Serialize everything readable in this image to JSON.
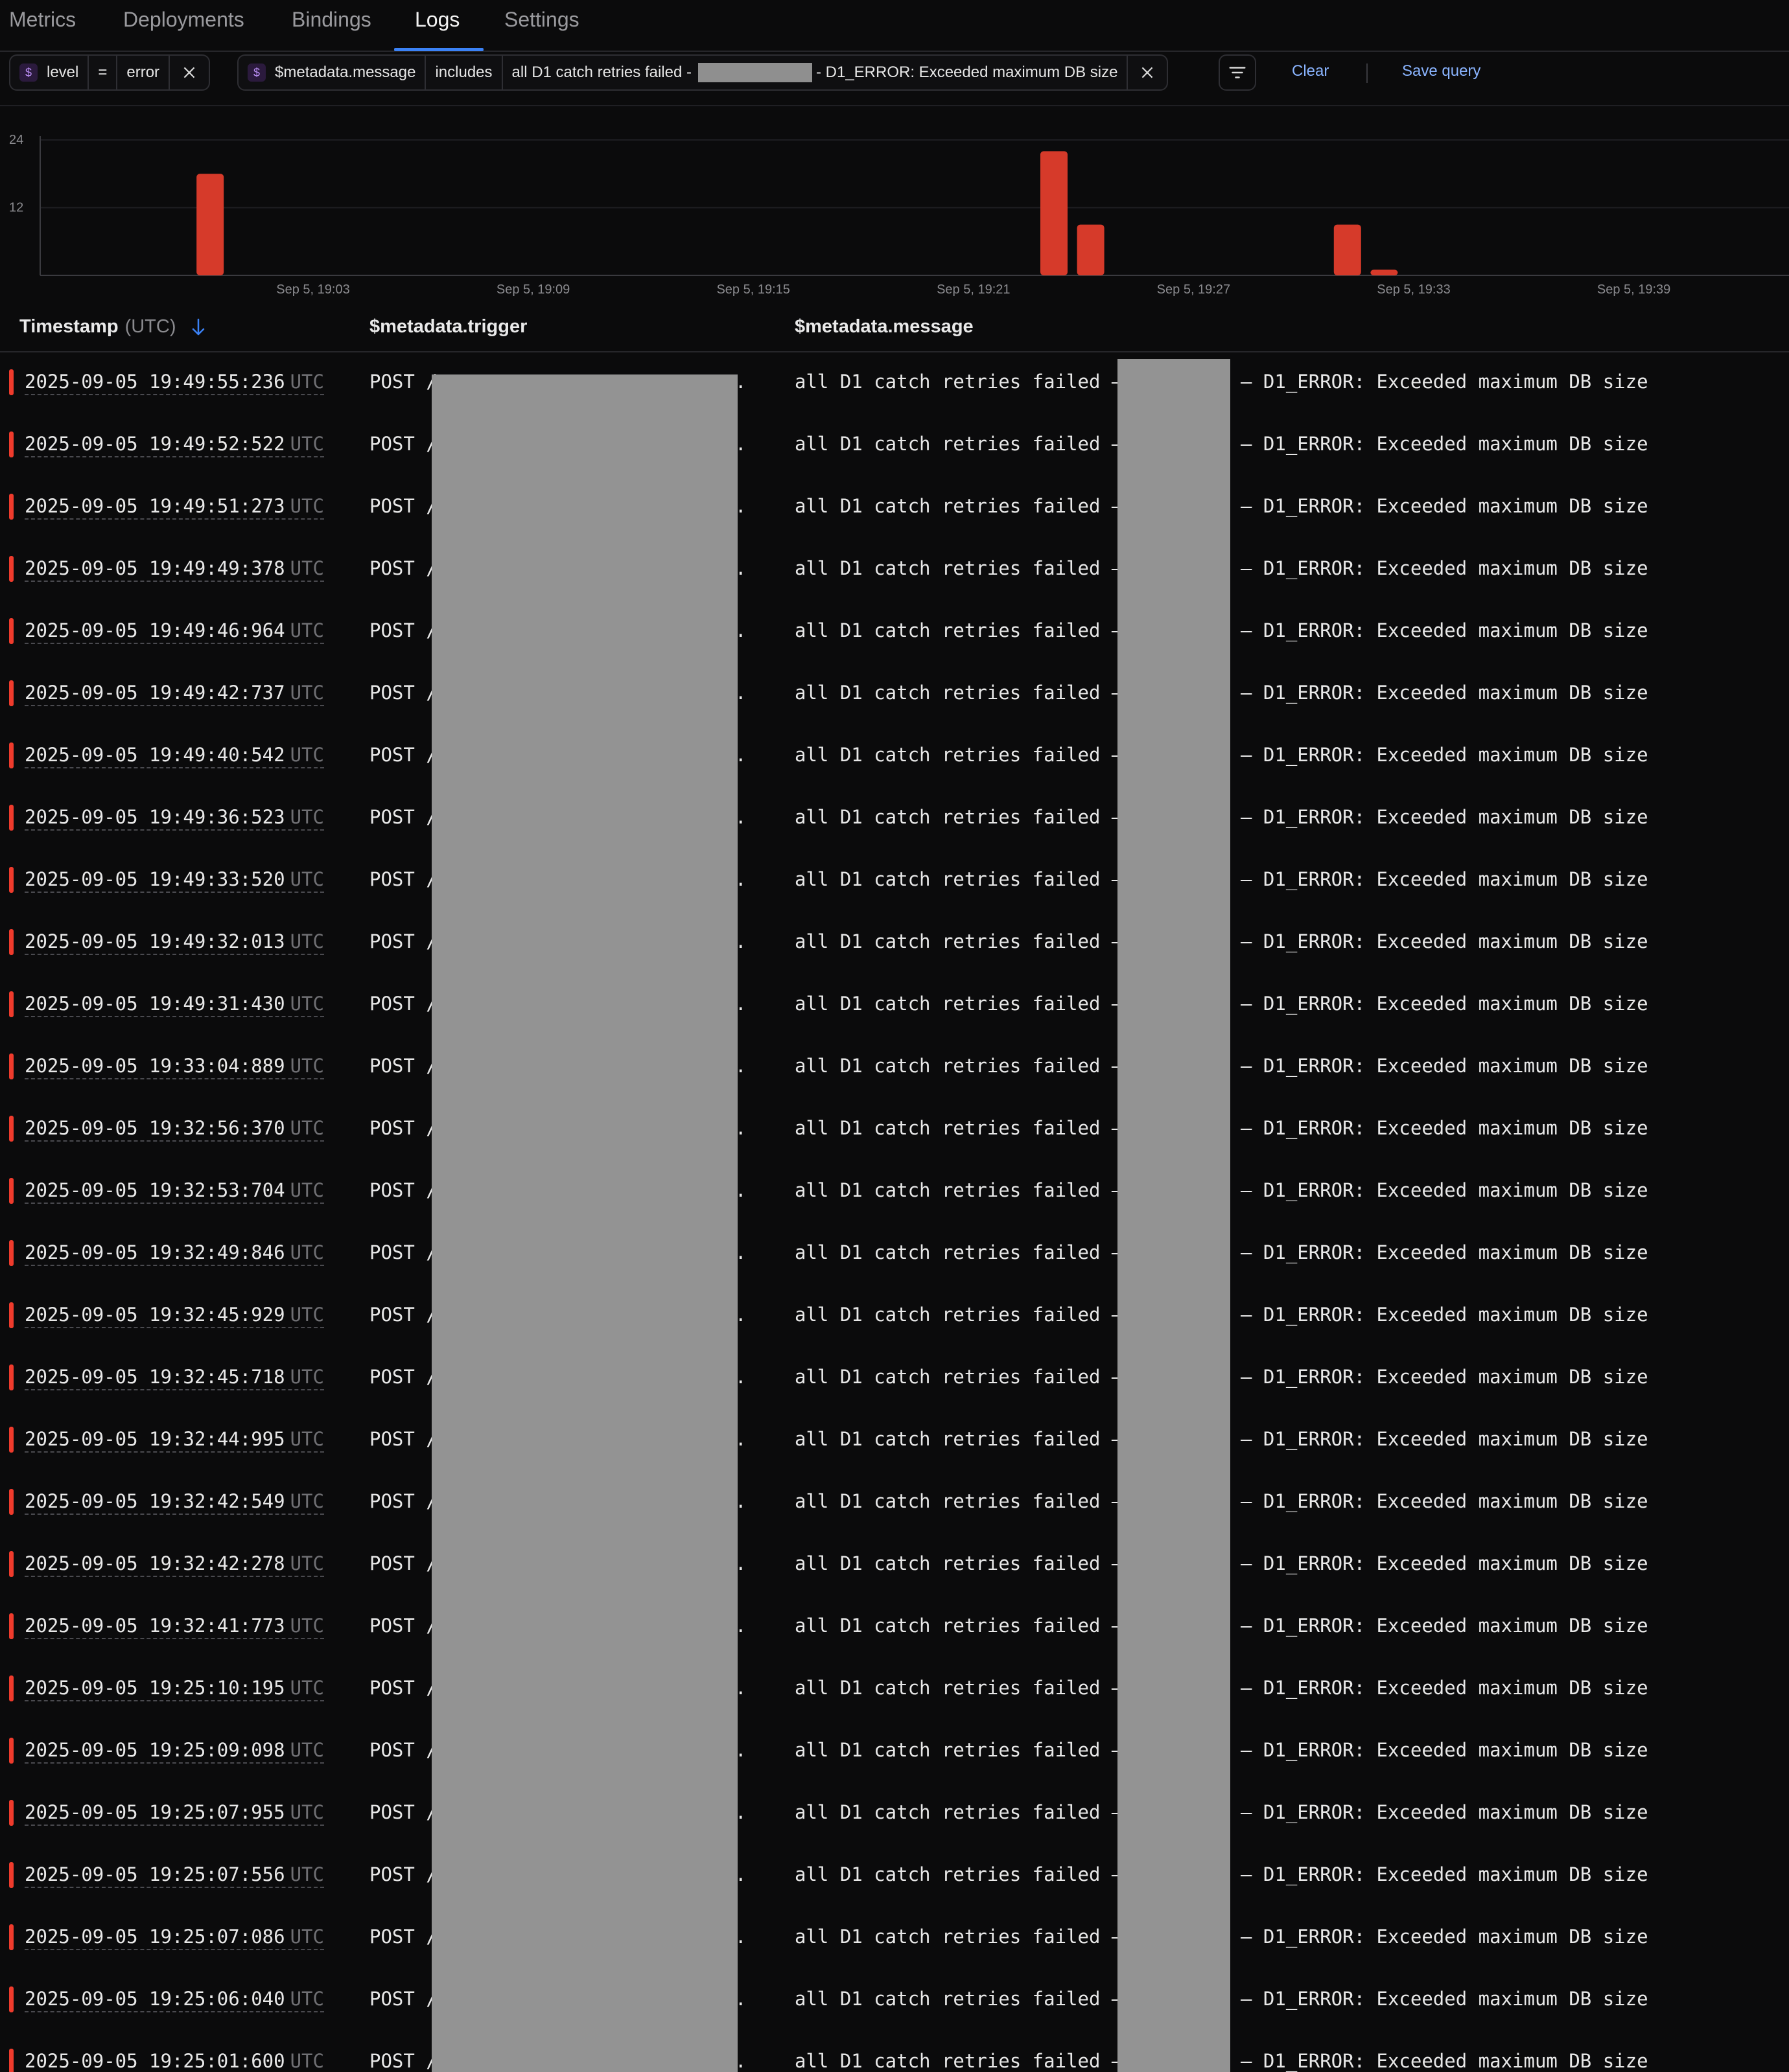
{
  "tabs": [
    {
      "label": "Metrics"
    },
    {
      "label": "Deployments"
    },
    {
      "label": "Bindings"
    },
    {
      "label": "Logs"
    },
    {
      "label": "Settings"
    }
  ],
  "active_tab": "Logs",
  "filters": {
    "level": {
      "symbol": "$",
      "field": "level",
      "operator": "=",
      "value": "error"
    },
    "message": {
      "symbol": "$",
      "field": "$metadata.message",
      "operator": "includes",
      "value_start": "all D1 catch retries failed -",
      "value_end": "- D1_ERROR: Exceeded maximum DB size"
    },
    "clear_label": "Clear",
    "save_label": "Save query"
  },
  "chart_data": {
    "type": "bar",
    "y_ticks": [
      "24",
      "12"
    ],
    "ylim": [
      0,
      24
    ],
    "x_tick_labels": [
      "Sep 5, 19:03",
      "Sep 5, 19:09",
      "Sep 5, 19:15",
      "Sep 5, 19:21",
      "Sep 5, 19:27",
      "Sep 5, 19:33",
      "Sep 5, 19:39"
    ],
    "bars": [
      {
        "time": "Sep 5, 19:00",
        "value": 18
      },
      {
        "time": "Sep 5, 19:23",
        "value": 22
      },
      {
        "time": "Sep 5, 19:24",
        "value": 9
      },
      {
        "time": "Sep 5, 19:31",
        "value": 9
      },
      {
        "time": "Sep 5, 19:32",
        "value": 1
      }
    ],
    "bar_color": "#d63a2a"
  },
  "table": {
    "columns": {
      "timestamp": "Timestamp",
      "timestamp_unit": "(UTC)",
      "trigger": "$metadata.trigger",
      "message": "$metadata.message"
    },
    "utc_suffix": "UTC",
    "trigger_prefix": "POST /",
    "trigger_suffix": ".",
    "message_start": "all D1 catch retries failed –",
    "message_end": "– D1_ERROR: Exceeded maximum DB size",
    "rows": [
      {
        "ts": "2025-09-05 19:49:55:236"
      },
      {
        "ts": "2025-09-05 19:49:52:522"
      },
      {
        "ts": "2025-09-05 19:49:51:273"
      },
      {
        "ts": "2025-09-05 19:49:49:378"
      },
      {
        "ts": "2025-09-05 19:49:46:964"
      },
      {
        "ts": "2025-09-05 19:49:42:737"
      },
      {
        "ts": "2025-09-05 19:49:40:542"
      },
      {
        "ts": "2025-09-05 19:49:36:523"
      },
      {
        "ts": "2025-09-05 19:49:33:520"
      },
      {
        "ts": "2025-09-05 19:49:32:013"
      },
      {
        "ts": "2025-09-05 19:49:31:430"
      },
      {
        "ts": "2025-09-05 19:33:04:889"
      },
      {
        "ts": "2025-09-05 19:32:56:370"
      },
      {
        "ts": "2025-09-05 19:32:53:704"
      },
      {
        "ts": "2025-09-05 19:32:49:846"
      },
      {
        "ts": "2025-09-05 19:32:45:929"
      },
      {
        "ts": "2025-09-05 19:32:45:718"
      },
      {
        "ts": "2025-09-05 19:32:44:995"
      },
      {
        "ts": "2025-09-05 19:32:42:549"
      },
      {
        "ts": "2025-09-05 19:32:42:278"
      },
      {
        "ts": "2025-09-05 19:32:41:773"
      },
      {
        "ts": "2025-09-05 19:25:10:195"
      },
      {
        "ts": "2025-09-05 19:25:09:098"
      },
      {
        "ts": "2025-09-05 19:25:07:955"
      },
      {
        "ts": "2025-09-05 19:25:07:556"
      },
      {
        "ts": "2025-09-05 19:25:07:086"
      },
      {
        "ts": "2025-09-05 19:25:06:040"
      },
      {
        "ts": "2025-09-05 19:25:01:600"
      }
    ]
  },
  "colors": {
    "accent": "#3b82f6",
    "error": "#ef3b2c",
    "link": "#8ab4ff"
  }
}
